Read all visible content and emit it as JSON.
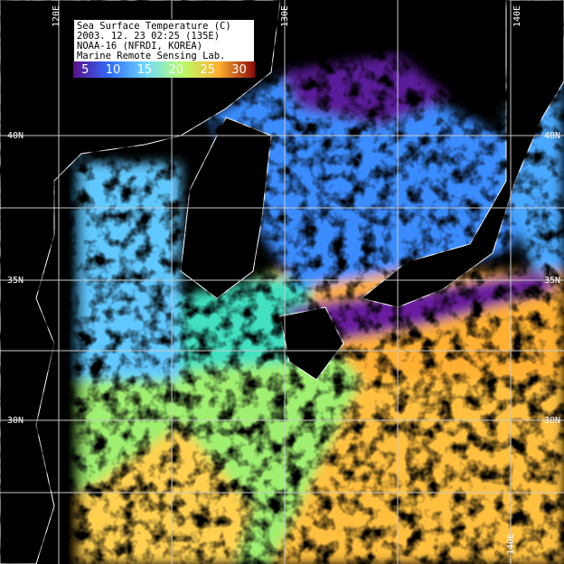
{
  "legend": {
    "title": "Sea Surface Temperature (C)",
    "datetime": "2003. 12. 23  02:25 (135E)",
    "satellite": "NOAA-16 (NFRDI, KOREA)",
    "lab": "Marine Remote Sensing Lab.",
    "scale_labels": [
      "5",
      "10",
      "15",
      "20",
      "25",
      "30"
    ],
    "colors": [
      "#5a0f8a",
      "#2f6dff",
      "#6fd8ff",
      "#b8ff6a",
      "#ffb030",
      "#8a0a0a"
    ]
  },
  "grid": {
    "lon_labels": [
      "120E",
      "130E",
      "140E",
      "140E"
    ],
    "lat_labels": [
      "40N",
      "35N",
      "30N",
      "40N",
      "35N",
      "30N"
    ]
  }
}
